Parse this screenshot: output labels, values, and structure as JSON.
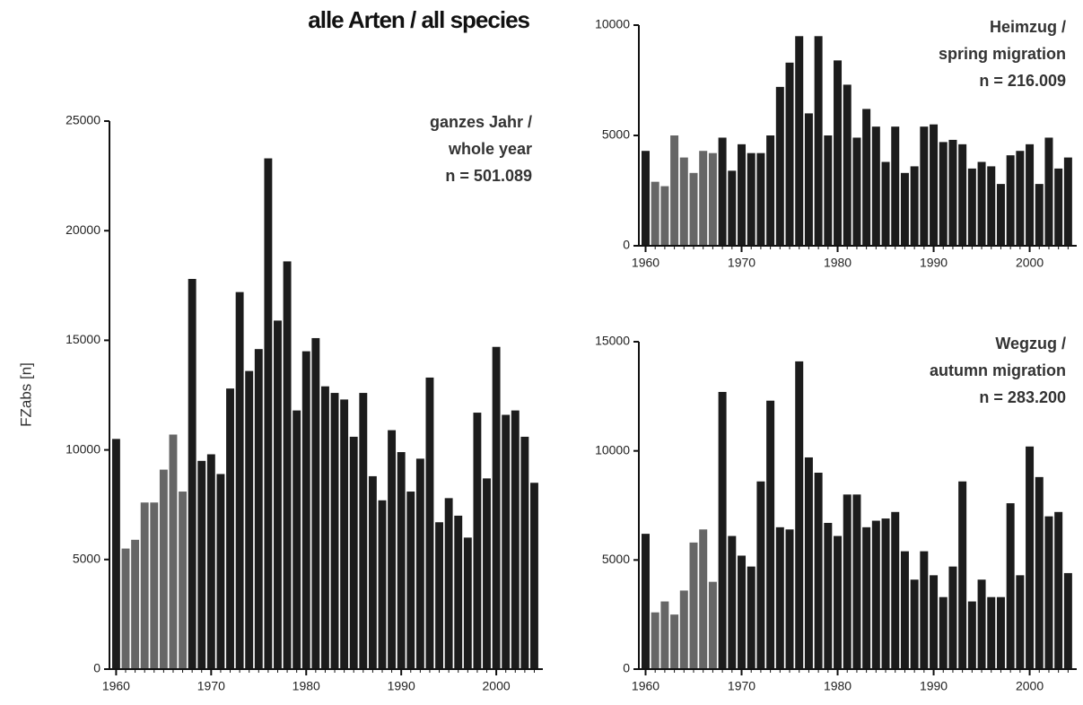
{
  "title": "alle Arten / all species",
  "chart_data": [
    {
      "type": "bar",
      "ylabel": "FZabs  [n]",
      "annotations": [
        "ganzes Jahr /",
        "whole year",
        "n = 501.089"
      ],
      "x": [
        1960,
        1961,
        1962,
        1963,
        1964,
        1965,
        1966,
        1967,
        1968,
        1969,
        1970,
        1971,
        1972,
        1973,
        1974,
        1975,
        1976,
        1977,
        1978,
        1979,
        1980,
        1981,
        1982,
        1983,
        1984,
        1985,
        1986,
        1987,
        1988,
        1989,
        1990,
        1991,
        1992,
        1993,
        1994,
        1995,
        1996,
        1997,
        1998,
        1999,
        2000,
        2001,
        2002,
        2003,
        2004
      ],
      "values": [
        10500,
        5500,
        5900,
        7600,
        7600,
        9100,
        10700,
        8100,
        17800,
        9500,
        9800,
        8900,
        12800,
        17200,
        13600,
        14600,
        23300,
        15900,
        18600,
        11800,
        14500,
        15100,
        12900,
        12600,
        12300,
        10600,
        12600,
        8800,
        7700,
        10900,
        9900,
        8100,
        9600,
        13300,
        6700,
        7800,
        7000,
        6000,
        11700,
        8700,
        14700,
        11600,
        11800,
        10600,
        8500
      ],
      "colors": [
        "#1c1c1c",
        "#666666",
        "#666666",
        "#666666",
        "#666666",
        "#666666",
        "#666666",
        "#666666",
        "#1c1c1c",
        "#1c1c1c",
        "#1c1c1c",
        "#1c1c1c",
        "#1c1c1c",
        "#1c1c1c",
        "#1c1c1c",
        "#1c1c1c",
        "#1c1c1c",
        "#1c1c1c",
        "#1c1c1c",
        "#1c1c1c",
        "#1c1c1c",
        "#1c1c1c",
        "#1c1c1c",
        "#1c1c1c",
        "#1c1c1c",
        "#1c1c1c",
        "#1c1c1c",
        "#1c1c1c",
        "#1c1c1c",
        "#1c1c1c",
        "#1c1c1c",
        "#1c1c1c",
        "#1c1c1c",
        "#1c1c1c",
        "#1c1c1c",
        "#1c1c1c",
        "#1c1c1c",
        "#1c1c1c",
        "#1c1c1c",
        "#1c1c1c",
        "#1c1c1c",
        "#1c1c1c",
        "#1c1c1c",
        "#1c1c1c",
        "#1c1c1c"
      ],
      "xlim": [
        1959.3,
        2004.9
      ],
      "xticks": [
        1960,
        1970,
        1980,
        1990,
        2000
      ],
      "ylim": [
        0,
        25000
      ],
      "yticks": [
        0,
        5000,
        10000,
        15000,
        20000,
        25000
      ]
    },
    {
      "type": "bar",
      "annotations": [
        "Heimzug /",
        "spring migration",
        "n = 216.009"
      ],
      "x": [
        1960,
        1961,
        1962,
        1963,
        1964,
        1965,
        1966,
        1967,
        1968,
        1969,
        1970,
        1971,
        1972,
        1973,
        1974,
        1975,
        1976,
        1977,
        1978,
        1979,
        1980,
        1981,
        1982,
        1983,
        1984,
        1985,
        1986,
        1987,
        1988,
        1989,
        1990,
        1991,
        1992,
        1993,
        1994,
        1995,
        1996,
        1997,
        1998,
        1999,
        2000,
        2001,
        2002,
        2003,
        2004
      ],
      "values": [
        4300,
        2900,
        2700,
        5000,
        4000,
        3300,
        4300,
        4200,
        4900,
        3400,
        4600,
        4200,
        4200,
        5000,
        7200,
        8300,
        9500,
        6000,
        9500,
        5000,
        8400,
        7300,
        4900,
        6200,
        5400,
        3800,
        5400,
        3300,
        3600,
        5400,
        5500,
        4700,
        4800,
        4600,
        3500,
        3800,
        3600,
        2800,
        4100,
        4300,
        4600,
        2800,
        4900,
        3500,
        4000
      ],
      "colors": [
        "#1c1c1c",
        "#666666",
        "#666666",
        "#666666",
        "#666666",
        "#666666",
        "#666666",
        "#666666",
        "#1c1c1c",
        "#1c1c1c",
        "#1c1c1c",
        "#1c1c1c",
        "#1c1c1c",
        "#1c1c1c",
        "#1c1c1c",
        "#1c1c1c",
        "#1c1c1c",
        "#1c1c1c",
        "#1c1c1c",
        "#1c1c1c",
        "#1c1c1c",
        "#1c1c1c",
        "#1c1c1c",
        "#1c1c1c",
        "#1c1c1c",
        "#1c1c1c",
        "#1c1c1c",
        "#1c1c1c",
        "#1c1c1c",
        "#1c1c1c",
        "#1c1c1c",
        "#1c1c1c",
        "#1c1c1c",
        "#1c1c1c",
        "#1c1c1c",
        "#1c1c1c",
        "#1c1c1c",
        "#1c1c1c",
        "#1c1c1c",
        "#1c1c1c",
        "#1c1c1c",
        "#1c1c1c",
        "#1c1c1c",
        "#1c1c1c",
        "#1c1c1c"
      ],
      "xlim": [
        1959.3,
        2004.9
      ],
      "xticks": [
        1960,
        1970,
        1980,
        1990,
        2000
      ],
      "ylim": [
        0,
        10000
      ],
      "yticks": [
        0,
        5000,
        10000
      ]
    },
    {
      "type": "bar",
      "annotations": [
        "Wegzug /",
        "autumn migration",
        "n = 283.200"
      ],
      "x": [
        1960,
        1961,
        1962,
        1963,
        1964,
        1965,
        1966,
        1967,
        1968,
        1969,
        1970,
        1971,
        1972,
        1973,
        1974,
        1975,
        1976,
        1977,
        1978,
        1979,
        1980,
        1981,
        1982,
        1983,
        1984,
        1985,
        1986,
        1987,
        1988,
        1989,
        1990,
        1991,
        1992,
        1993,
        1994,
        1995,
        1996,
        1997,
        1998,
        1999,
        2000,
        2001,
        2002,
        2003,
        2004
      ],
      "values": [
        6200,
        2600,
        3100,
        2500,
        3600,
        5800,
        6400,
        4000,
        12700,
        6100,
        5200,
        4700,
        8600,
        12300,
        6500,
        6400,
        14100,
        9700,
        9000,
        6700,
        6100,
        8000,
        8000,
        6500,
        6800,
        6900,
        7200,
        5400,
        4100,
        5400,
        4300,
        3300,
        4700,
        8600,
        3100,
        4100,
        3300,
        3300,
        7600,
        4300,
        10200,
        8800,
        7000,
        7200,
        4400
      ],
      "colors": [
        "#1c1c1c",
        "#666666",
        "#666666",
        "#666666",
        "#666666",
        "#666666",
        "#666666",
        "#666666",
        "#1c1c1c",
        "#1c1c1c",
        "#1c1c1c",
        "#1c1c1c",
        "#1c1c1c",
        "#1c1c1c",
        "#1c1c1c",
        "#1c1c1c",
        "#1c1c1c",
        "#1c1c1c",
        "#1c1c1c",
        "#1c1c1c",
        "#1c1c1c",
        "#1c1c1c",
        "#1c1c1c",
        "#1c1c1c",
        "#1c1c1c",
        "#1c1c1c",
        "#1c1c1c",
        "#1c1c1c",
        "#1c1c1c",
        "#1c1c1c",
        "#1c1c1c",
        "#1c1c1c",
        "#1c1c1c",
        "#1c1c1c",
        "#1c1c1c",
        "#1c1c1c",
        "#1c1c1c",
        "#1c1c1c",
        "#1c1c1c",
        "#1c1c1c",
        "#1c1c1c",
        "#1c1c1c",
        "#1c1c1c",
        "#1c1c1c",
        "#1c1c1c"
      ],
      "xlim": [
        1959.3,
        2004.9
      ],
      "xticks": [
        1960,
        1970,
        1980,
        1990,
        2000
      ],
      "ylim": [
        0,
        15000
      ],
      "yticks": [
        0,
        5000,
        10000,
        15000
      ]
    }
  ]
}
